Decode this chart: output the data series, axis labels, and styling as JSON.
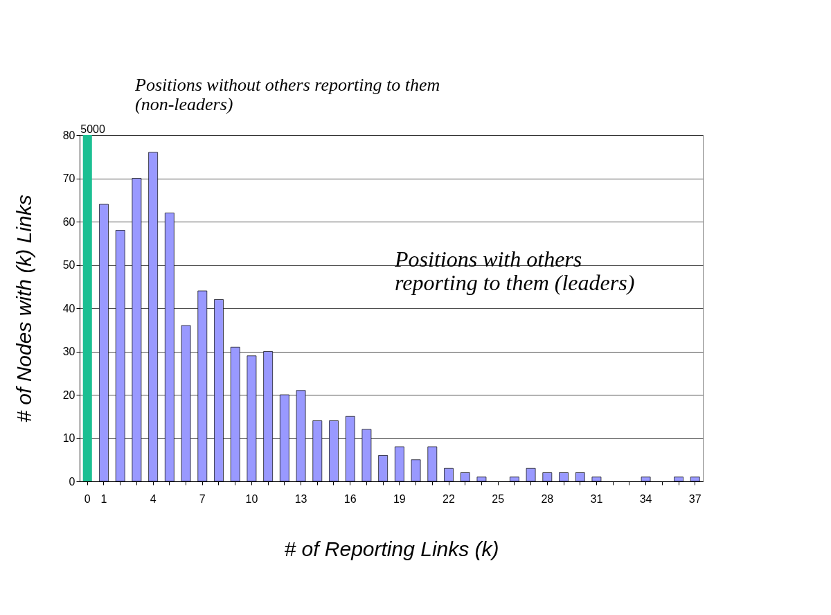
{
  "chart_data": {
    "type": "bar",
    "xlabel": "# of Reporting Links (k)",
    "ylabel": "# of Nodes with (k) Links",
    "categories": [
      "0",
      "1",
      null,
      null,
      "4",
      null,
      null,
      "7",
      null,
      null,
      "10",
      null,
      null,
      "13",
      null,
      null,
      "16",
      null,
      null,
      "19",
      null,
      null,
      "22",
      null,
      null,
      "25",
      null,
      null,
      "28",
      null,
      null,
      "31",
      null,
      null,
      "34",
      null,
      null,
      "37"
    ],
    "series": [
      {
        "color": "#1bbf92",
        "axis": "y2",
        "values": [
          5000,
          null,
          null,
          null,
          null,
          null,
          null,
          null,
          null,
          null,
          null,
          null,
          null,
          null,
          null,
          null,
          null,
          null,
          null,
          null,
          null,
          null,
          null,
          null,
          null,
          null,
          null,
          null,
          null,
          null,
          null,
          null,
          null,
          null,
          null,
          null,
          null,
          null
        ],
        "value_labels": [
          "5000",
          null,
          null,
          null,
          null,
          null,
          null,
          null,
          null,
          null,
          null,
          null,
          null,
          null,
          null,
          null,
          null,
          null,
          null,
          null,
          null,
          null,
          null,
          null,
          null,
          null,
          null,
          null,
          null,
          null,
          null,
          null,
          null,
          null,
          null,
          null,
          null,
          null
        ]
      },
      {
        "color": "#9999ff",
        "values": [
          null,
          64,
          58,
          70,
          76,
          62,
          36,
          44,
          42,
          31,
          29,
          30,
          20,
          21,
          14,
          14,
          15,
          12,
          6,
          8,
          5,
          8,
          3,
          2,
          1,
          0,
          1,
          3,
          2,
          2,
          2,
          1,
          0,
          0,
          1,
          0,
          1,
          1
        ]
      }
    ],
    "ylim": [
      0,
      80
    ],
    "yticks": [
      0,
      10,
      20,
      30,
      40,
      50,
      60,
      70,
      80
    ],
    "y2lim": [
      0,
      5000
    ],
    "grid": "y",
    "annotations": [
      "Positions without others reporting to them (non-leaders)",
      "Positions with others reporting to them (leaders)"
    ]
  }
}
